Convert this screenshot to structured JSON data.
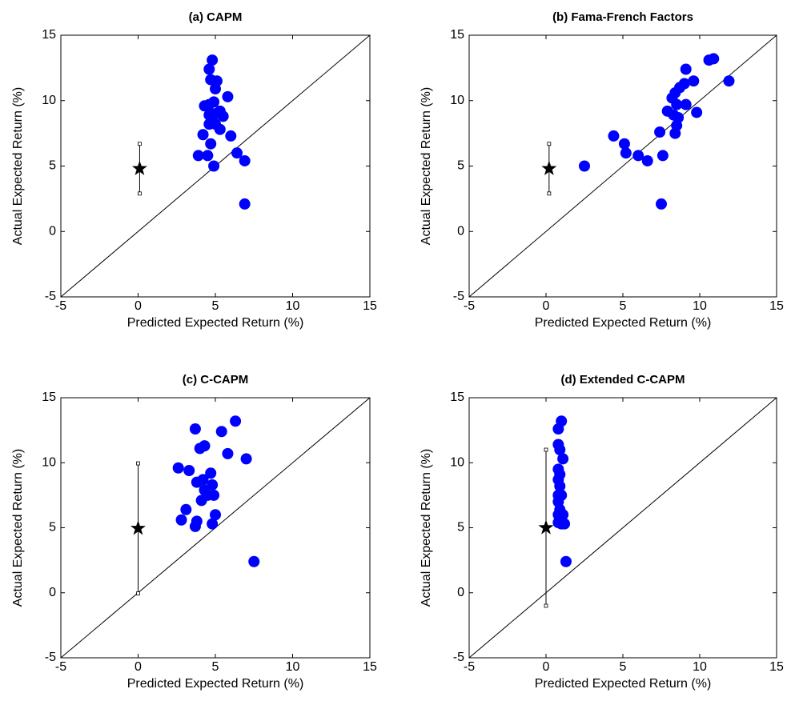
{
  "chart_data": [
    {
      "type": "scatter",
      "title": "(a) CAPM",
      "xlabel": "Predicted Expected Return (%)",
      "ylabel": "Actual Expected Return (%)",
      "xlim": [
        -5,
        15
      ],
      "ylim": [
        -5,
        15
      ],
      "xticks": [
        -5,
        0,
        5,
        10,
        15
      ],
      "yticks": [
        -5,
        0,
        5,
        10,
        15
      ],
      "series": [
        {
          "color": "#0000ff",
          "x": [
            4.8,
            4.6,
            4.7,
            5.1,
            5.0,
            5.8,
            4.9,
            4.6,
            5.3,
            4.6,
            5.5,
            5.0,
            4.6,
            5.3,
            4.2,
            6.0,
            4.7,
            3.9,
            4.5,
            6.4,
            6.9,
            4.9,
            6.9,
            4.3,
            5.0
          ],
          "values": [
            13.1,
            12.4,
            11.6,
            11.5,
            10.9,
            10.3,
            9.9,
            9.7,
            9.2,
            8.9,
            8.8,
            8.2,
            8.2,
            7.8,
            7.4,
            7.3,
            6.7,
            5.8,
            5.8,
            6.0,
            5.4,
            5.0,
            2.1,
            9.6,
            9.0
          ]
        }
      ],
      "reference": {
        "x": 0.1,
        "y": 4.8,
        "error": 1.9,
        "color": "#000000"
      }
    },
    {
      "type": "scatter",
      "title": "(b) Fama-French Factors",
      "xlabel": "Predicted Expected Return (%)",
      "ylabel": "Actual Expected Return (%)",
      "xlim": [
        -5,
        15
      ],
      "ylim": [
        -5,
        15
      ],
      "xticks": [
        -5,
        0,
        5,
        10,
        15
      ],
      "yticks": [
        -5,
        0,
        5,
        10,
        15
      ],
      "series": [
        {
          "color": "#0000ff",
          "x": [
            2.5,
            4.4,
            5.1,
            5.2,
            6.0,
            6.6,
            7.4,
            7.6,
            7.5,
            7.9,
            8.2,
            8.4,
            8.5,
            8.3,
            8.6,
            8.5,
            8.4,
            8.7,
            9.0,
            9.1,
            9.1,
            9.6,
            9.8,
            10.6,
            10.9,
            11.9
          ],
          "values": [
            5.0,
            7.3,
            6.7,
            6.0,
            5.8,
            5.4,
            7.6,
            5.8,
            2.1,
            9.2,
            10.2,
            10.6,
            9.7,
            8.9,
            8.7,
            8.1,
            7.5,
            11.0,
            11.3,
            9.7,
            12.4,
            11.5,
            9.1,
            13.1,
            13.2,
            11.5
          ]
        }
      ],
      "reference": {
        "x": 0.2,
        "y": 4.8,
        "error": 1.9,
        "color": "#000000"
      }
    },
    {
      "type": "scatter",
      "title": "(c) C-CAPM",
      "xlabel": "Predicted Expected Return (%)",
      "ylabel": "Actual Expected Return (%)",
      "xlim": [
        -5,
        15
      ],
      "ylim": [
        -5,
        15
      ],
      "xticks": [
        -5,
        0,
        5,
        10,
        15
      ],
      "yticks": [
        -5,
        0,
        5,
        10,
        15
      ],
      "series": [
        {
          "color": "#0000ff",
          "x": [
            3.7,
            6.3,
            5.4,
            4.0,
            4.3,
            5.8,
            7.0,
            2.6,
            3.3,
            4.7,
            3.8,
            4.2,
            4.3,
            4.8,
            4.5,
            4.9,
            4.1,
            3.1,
            2.8,
            3.8,
            3.7,
            5.0,
            4.8,
            7.5
          ],
          "values": [
            12.6,
            13.2,
            12.4,
            11.1,
            11.3,
            10.7,
            10.3,
            9.6,
            9.4,
            9.2,
            8.5,
            8.7,
            7.9,
            8.3,
            7.5,
            7.5,
            7.1,
            6.4,
            5.6,
            5.5,
            5.1,
            6.0,
            5.3,
            2.4
          ]
        }
      ],
      "reference": {
        "x": 0.0,
        "y": 4.95,
        "error": 5.0,
        "color": "#000000"
      }
    },
    {
      "type": "scatter",
      "title": "(d) Extended C-CAPM",
      "xlabel": "Predicted Expected Return (%)",
      "ylabel": "Actual Expected Return (%)",
      "xlim": [
        -5,
        15
      ],
      "ylim": [
        -5,
        15
      ],
      "xticks": [
        -5,
        0,
        5,
        10,
        15
      ],
      "yticks": [
        -5,
        0,
        5,
        10,
        15
      ],
      "series": [
        {
          "color": "#0000ff",
          "x": [
            1.0,
            0.8,
            0.8,
            0.9,
            1.1,
            0.8,
            0.9,
            0.8,
            0.9,
            0.8,
            1.0,
            0.8,
            0.9,
            0.8,
            1.1,
            0.8,
            1.0,
            1.2,
            1.3,
            0.9
          ],
          "values": [
            13.2,
            12.6,
            11.4,
            11.0,
            10.3,
            9.5,
            9.1,
            8.7,
            8.2,
            7.5,
            7.5,
            7.0,
            6.4,
            6.0,
            6.0,
            5.4,
            5.3,
            5.3,
            2.4,
            5.7
          ]
        }
      ],
      "reference": {
        "x": 0.0,
        "y": 5.0,
        "error": 6.0,
        "color": "#000000"
      }
    }
  ]
}
